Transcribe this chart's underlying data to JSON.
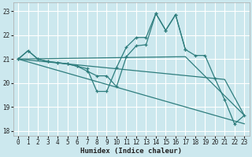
{
  "xlabel": "Humidex (Indice chaleur)",
  "background_color": "#cce8ee",
  "grid_color": "#ffffff",
  "line_color": "#2e7d7d",
  "xlim": [
    -0.5,
    23.5
  ],
  "ylim": [
    17.8,
    23.35
  ],
  "yticks": [
    18,
    19,
    20,
    21,
    22,
    23
  ],
  "xticks": [
    0,
    1,
    2,
    3,
    4,
    5,
    6,
    7,
    8,
    9,
    10,
    11,
    12,
    13,
    14,
    15,
    16,
    17,
    18,
    19,
    20,
    21,
    22,
    23
  ],
  "line1_x": [
    0,
    1,
    2,
    3,
    4,
    5,
    6,
    7,
    8,
    9,
    10,
    11,
    12,
    13,
    14,
    15,
    16,
    17,
    18,
    19,
    20,
    21,
    22,
    23
  ],
  "line1_y": [
    21.0,
    21.35,
    21.0,
    20.9,
    20.85,
    20.8,
    20.7,
    20.6,
    19.65,
    19.65,
    20.65,
    21.5,
    21.9,
    21.9,
    22.9,
    22.2,
    22.85,
    21.4,
    21.15,
    21.15,
    20.2,
    19.3,
    18.3,
    18.65
  ],
  "line2_x": [
    0,
    1,
    2,
    3,
    4,
    5,
    6,
    7,
    8,
    9,
    10,
    11,
    12,
    13,
    14,
    15,
    16,
    17
  ],
  "line2_y": [
    21.0,
    21.35,
    21.0,
    20.9,
    20.85,
    20.8,
    20.7,
    20.5,
    20.3,
    20.3,
    19.85,
    21.1,
    21.55,
    21.6,
    22.9,
    22.2,
    22.85,
    21.4
  ],
  "line3_x": [
    0,
    17,
    23
  ],
  "line3_y": [
    21.0,
    21.1,
    18.65
  ],
  "line4_x": [
    0,
    23
  ],
  "line4_y": [
    21.0,
    18.3
  ],
  "line5_x": [
    0,
    21,
    23
  ],
  "line5_y": [
    21.0,
    20.15,
    18.65
  ]
}
